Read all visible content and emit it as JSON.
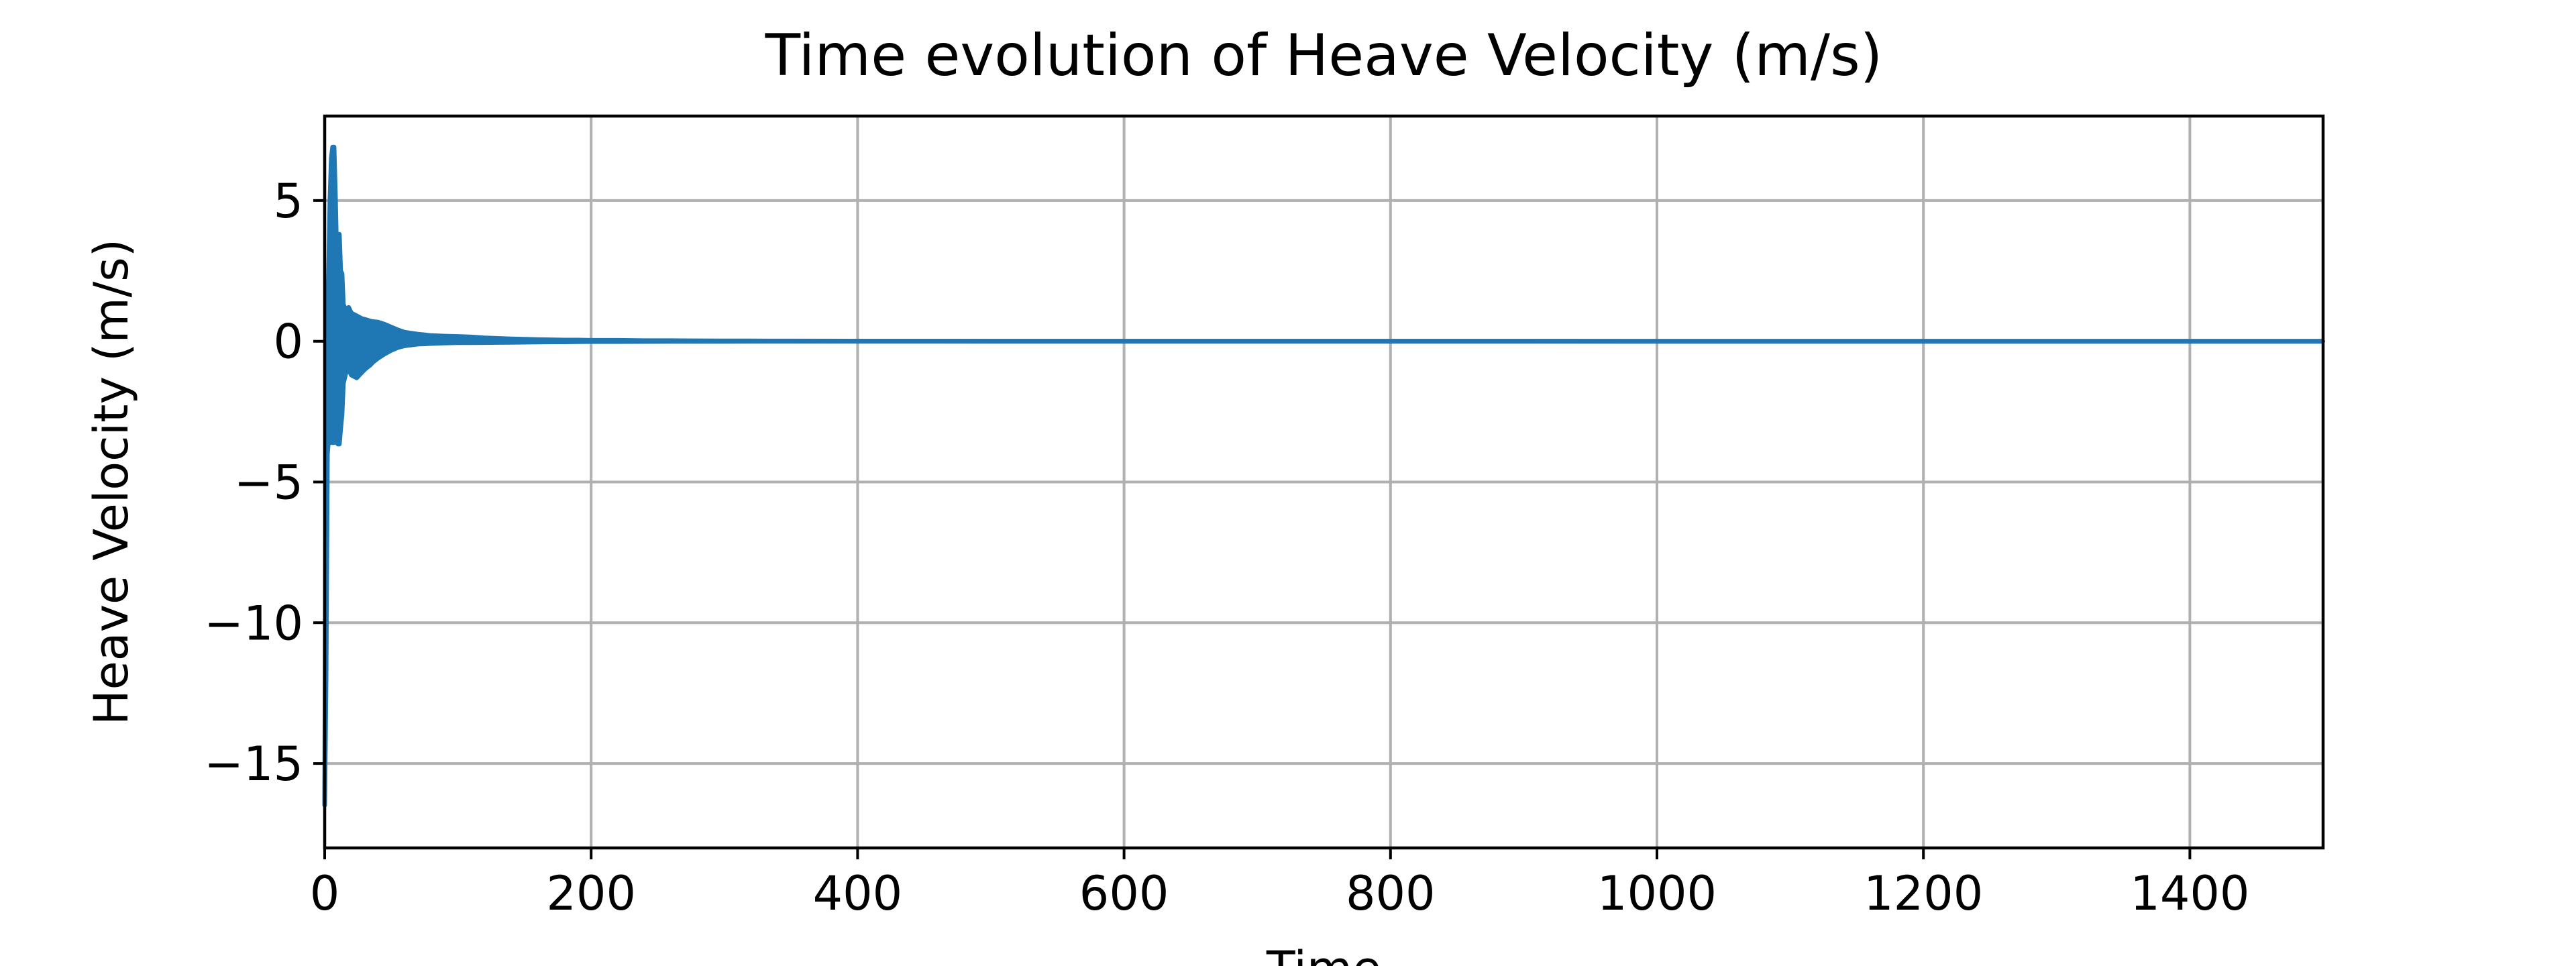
{
  "chart_data": {
    "type": "line",
    "title": "Time evolution of Heave Velocity (m/s)",
    "xlabel": "Time",
    "ylabel": "Heave Velocity (m/s)",
    "xlim": [
      0,
      1500
    ],
    "ylim": [
      -18,
      8
    ],
    "xticks": [
      0,
      200,
      400,
      600,
      800,
      1000,
      1200,
      1400
    ],
    "xtick_labels": [
      "0",
      "200",
      "400",
      "600",
      "800",
      "1000",
      "1200",
      "1400"
    ],
    "yticks": [
      5,
      0,
      -5,
      -10,
      -15
    ],
    "ytick_labels": [
      "5",
      "0",
      "−5",
      "−10",
      "−15"
    ],
    "grid": true,
    "line_color": "#1f77b4",
    "grid_color": "#b0b0b0",
    "series": [
      {
        "x": [
          0,
          1,
          2,
          3,
          4,
          5,
          6,
          7,
          8,
          9,
          10,
          11,
          12,
          13,
          14,
          15,
          16,
          17,
          18,
          19,
          20,
          22,
          24,
          26,
          28,
          30,
          32,
          34,
          36,
          40,
          45,
          50,
          55,
          60,
          70,
          80,
          90,
          100,
          110,
          120,
          130,
          140,
          150,
          160,
          170,
          180,
          190,
          200,
          220,
          240,
          260,
          280,
          300,
          320,
          350,
          400,
          500,
          700,
          1000,
          1500
        ],
        "upper": [
          -16.5,
          -3.0,
          0.8,
          2.5,
          5.0,
          6.5,
          6.9,
          6.9,
          5.2,
          3.0,
          3.8,
          3.8,
          2.5,
          2.4,
          1.3,
          1.2,
          1.1,
          1.0,
          1.2,
          1.1,
          1.0,
          0.95,
          0.9,
          0.85,
          0.8,
          0.78,
          0.75,
          0.72,
          0.7,
          0.68,
          0.6,
          0.5,
          0.4,
          0.32,
          0.25,
          0.2,
          0.18,
          0.17,
          0.15,
          0.12,
          0.1,
          0.08,
          0.07,
          0.06,
          0.05,
          0.04,
          0.04,
          0.03,
          0.03,
          0.02,
          0.02,
          0.015,
          0.01,
          0.01,
          0.008,
          0.005,
          0.003,
          0.002,
          0.001,
          0.0
        ],
        "lower": [
          -16.5,
          -12.0,
          -4.0,
          -3.4,
          -3.5,
          -3.6,
          -3.6,
          -3.6,
          -3.5,
          -3.6,
          -3.65,
          -3.65,
          -3.1,
          -2.6,
          -1.5,
          -1.3,
          -1.1,
          -1.05,
          -1.05,
          -1.1,
          -1.2,
          -1.25,
          -1.3,
          -1.2,
          -1.1,
          -1.0,
          -0.92,
          -0.85,
          -0.75,
          -0.6,
          -0.45,
          -0.32,
          -0.22,
          -0.16,
          -0.1,
          -0.08,
          -0.06,
          -0.05,
          -0.05,
          -0.045,
          -0.04,
          -0.035,
          -0.03,
          -0.025,
          -0.02,
          -0.02,
          -0.015,
          -0.01,
          -0.01,
          -0.008,
          -0.006,
          -0.005,
          -0.004,
          -0.003,
          -0.002,
          -0.001,
          -0.001,
          -0.001,
          0.0,
          0.0
        ]
      }
    ]
  }
}
